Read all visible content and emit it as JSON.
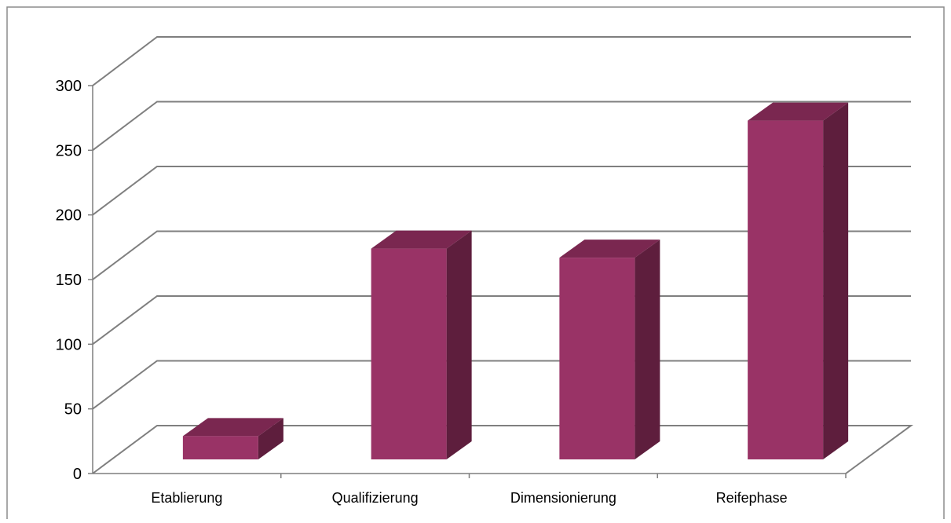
{
  "chart_data": {
    "type": "bar",
    "title": "",
    "xlabel": "",
    "ylabel": "",
    "categories": [
      "Etablierung",
      "Qualifizierung",
      "Dimensionierung",
      "Reifephase"
    ],
    "series": [
      {
        "values": [
          18,
          163,
          156,
          262
        ]
      }
    ],
    "ylim": [
      0,
      300
    ],
    "yticks": [
      0,
      50,
      100,
      150,
      200,
      250,
      300
    ],
    "grid": true,
    "legend": "none",
    "three_d": true,
    "colors": {
      "bar_front": "#993366",
      "bar_top": "#7a2750",
      "bar_side": "#5e1e3d",
      "grid": "#7f7f7f"
    }
  }
}
